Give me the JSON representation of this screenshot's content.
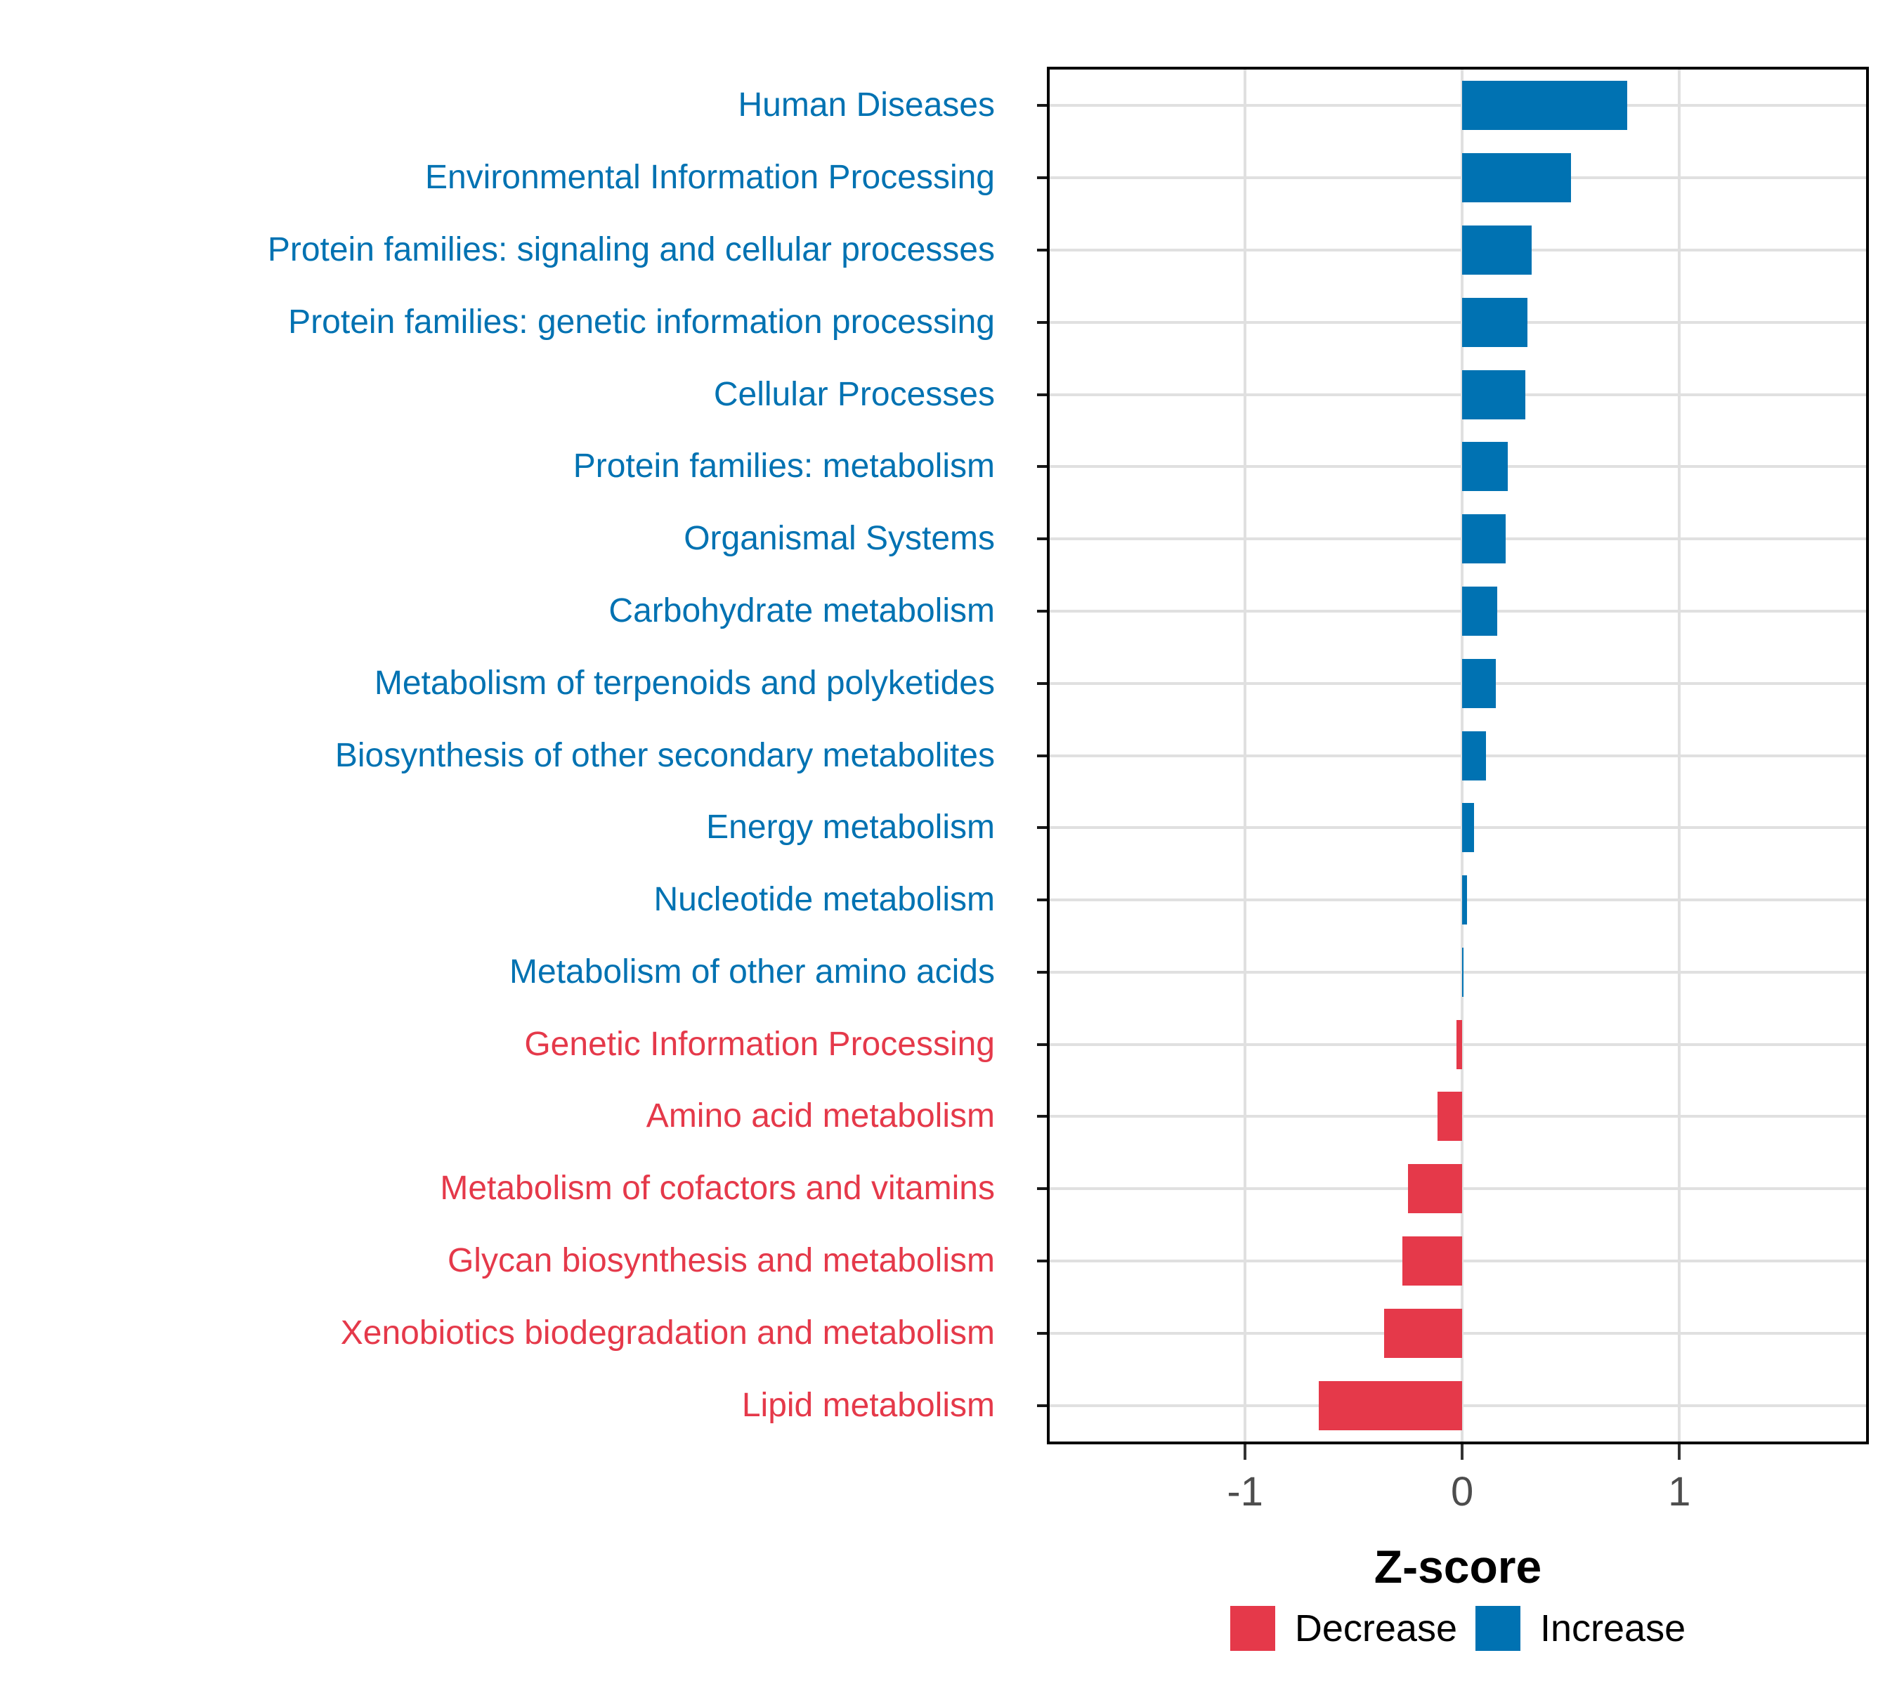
{
  "figure": {
    "background": "#FFFFFF"
  },
  "axis": {
    "title": "Z-score",
    "tick_labels": [
      "-1",
      "0",
      "1"
    ],
    "tick_label_color": "#4D4D4D"
  },
  "legend": {
    "position": "bottom",
    "entries": [
      {
        "label": "Decrease",
        "color": "#E5394A"
      },
      {
        "label": "Increase",
        "color": "#0072B2"
      }
    ]
  },
  "chart_data": {
    "type": "bar",
    "orientation": "horizontal",
    "title": "",
    "xlabel": "Z-score",
    "ylabel": "",
    "xlim": [
      -1.9,
      1.86
    ],
    "x_ticks": [
      -1,
      0,
      1
    ],
    "grid": "major-only",
    "legend_position": "bottom",
    "colors": {
      "increase": "#0072B2",
      "decrease": "#E5394A"
    },
    "categories": [
      "Human Diseases",
      "Environmental Information Processing",
      "Protein families: signaling and cellular processes",
      "Protein families: genetic information processing",
      "Cellular Processes",
      "Protein families: metabolism",
      "Organismal Systems",
      "Carbohydrate metabolism",
      "Metabolism of terpenoids and polyketides",
      "Biosynthesis of other secondary metabolites",
      "Energy metabolism",
      "Nucleotide metabolism",
      "Metabolism of other amino acids",
      "Genetic Information Processing",
      "Amino acid metabolism",
      "Metabolism of cofactors and vitamins",
      "Glycan biosynthesis and metabolism",
      "Xenobiotics biodegradation and metabolism",
      "Lipid metabolism"
    ],
    "values": [
      0.76,
      0.5,
      0.32,
      0.3,
      0.29,
      0.21,
      0.2,
      0.16,
      0.155,
      0.11,
      0.055,
      0.022,
      0.006,
      -0.028,
      -0.115,
      -0.25,
      -0.275,
      -0.36,
      -0.66
    ],
    "directions": [
      "increase",
      "increase",
      "increase",
      "increase",
      "increase",
      "increase",
      "increase",
      "increase",
      "increase",
      "increase",
      "increase",
      "increase",
      "increase",
      "decrease",
      "decrease",
      "decrease",
      "decrease",
      "decrease",
      "decrease"
    ]
  }
}
